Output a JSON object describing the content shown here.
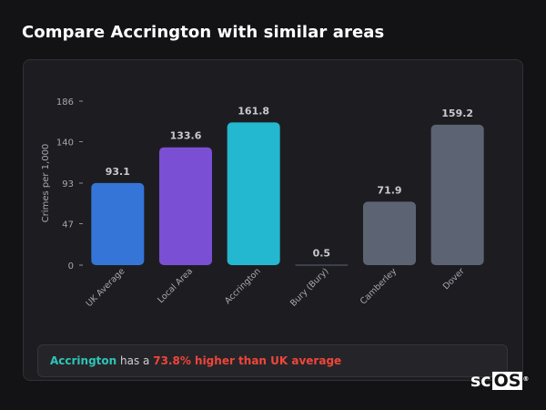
{
  "page": {
    "title": "Compare Accrington with similar areas"
  },
  "summary": {
    "area": "Accrington",
    "middle": " has a ",
    "stat": "73.8% higher than UK average"
  },
  "logo": {
    "prefix": "sc",
    "boxed": "OS",
    "mark": "®"
  },
  "chart_data": {
    "type": "bar",
    "title": "",
    "xlabel": "",
    "ylabel": "Crimes per 1,000",
    "ylim": [
      0,
      186
    ],
    "yticks": [
      0,
      47,
      93,
      140,
      186
    ],
    "grid": false,
    "categories": [
      "UK Average",
      "Local Area",
      "Accrington",
      "Bury (Bury)",
      "Camberley",
      "Dover"
    ],
    "values": [
      93.1,
      133.6,
      161.8,
      0.5,
      71.9,
      159.2
    ],
    "value_labels": [
      "93.1",
      "133.6",
      "161.8",
      "0.5",
      "71.9",
      "159.2"
    ],
    "colors": [
      "#3575d8",
      "#7b4fd4",
      "#23b8cf",
      "#5c6473",
      "#5c6473",
      "#5c6473"
    ]
  }
}
